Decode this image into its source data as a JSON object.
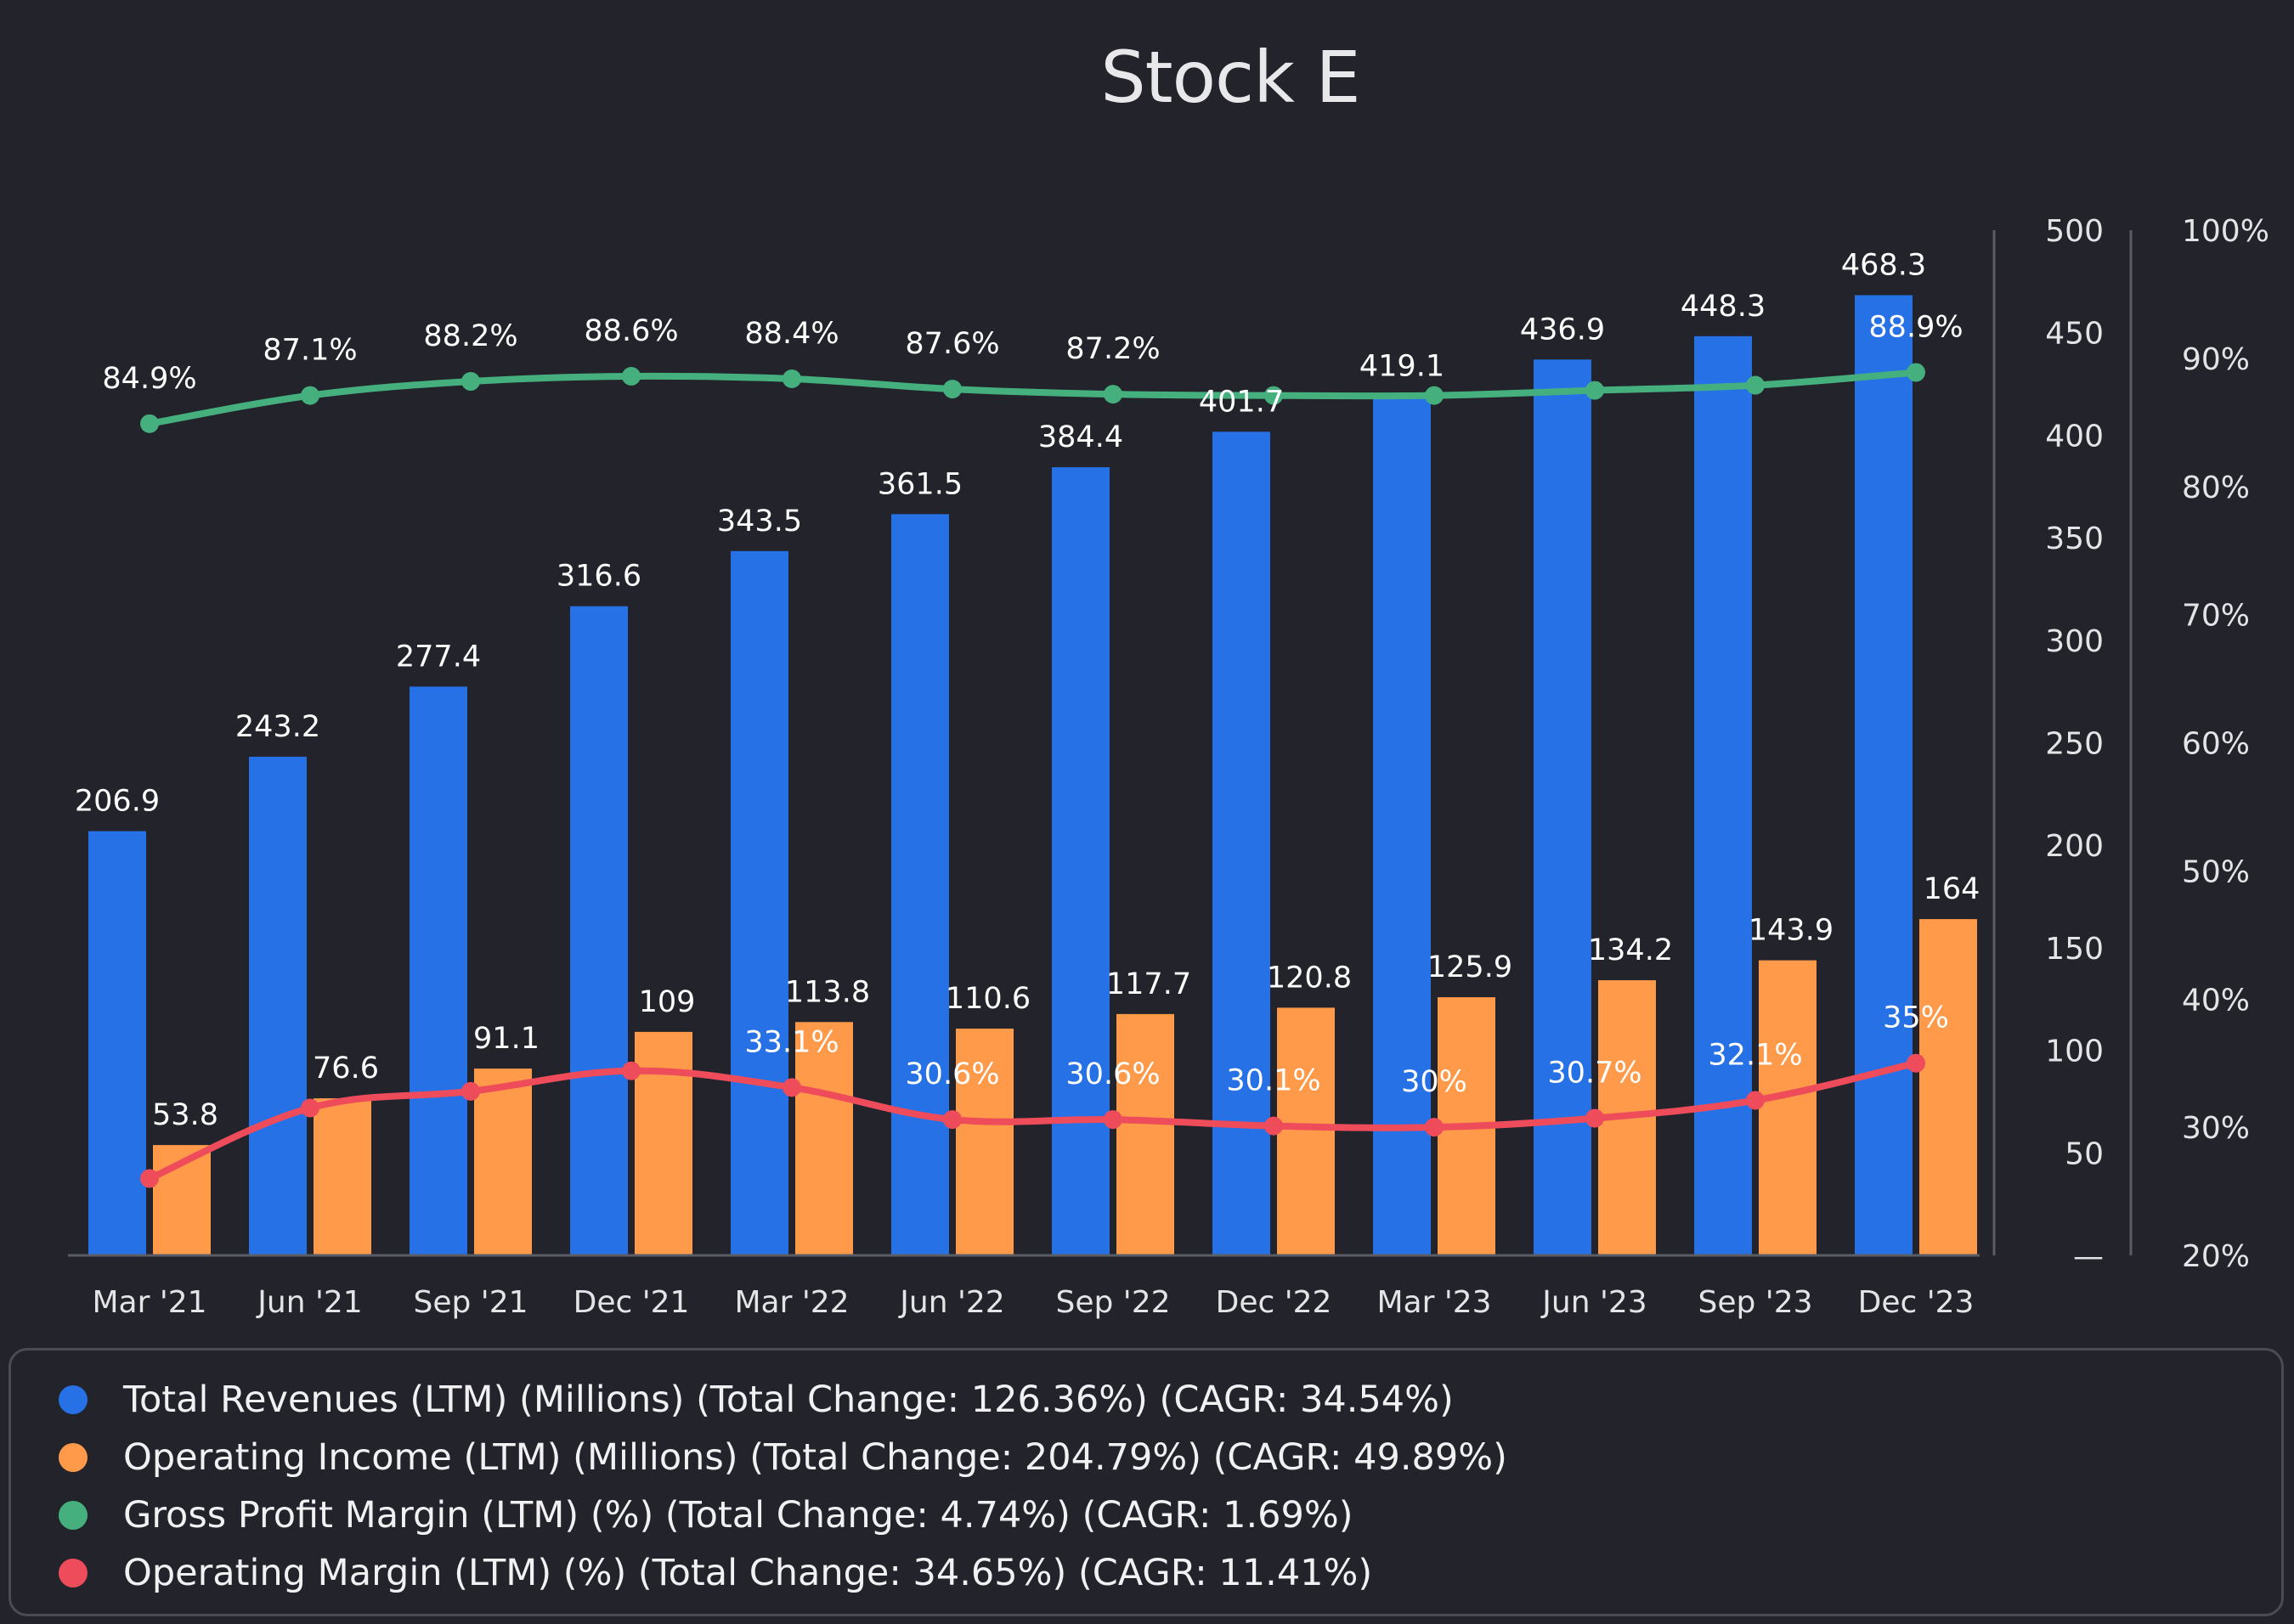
{
  "title": "Stock E",
  "colors": {
    "revenue": "#2671e6",
    "operating_income": "#fe9a4a",
    "gross_margin": "#45b07d",
    "operating_margin": "#ee4c5b",
    "axis_line": "#5b5d66",
    "background": "#22232b"
  },
  "legend": [
    {
      "label": "Total Revenues (LTM) (Millions) (Total Change: 126.36%) (CAGR: 34.54%)",
      "color": "#2671e6"
    },
    {
      "label": "Operating Income (LTM) (Millions) (Total Change: 204.79%) (CAGR: 49.89%)",
      "color": "#fe9a4a"
    },
    {
      "label": "Gross Profit Margin (LTM) (%) (Total Change: 4.74%) (CAGR: 1.69%)",
      "color": "#45b07d"
    },
    {
      "label": "Operating Margin (LTM) (%) (Total Change: 34.65%) (CAGR: 11.41%)",
      "color": "#ee4c5b"
    }
  ],
  "chart_data": {
    "type": "bar",
    "title": "Stock E",
    "categories": [
      "Mar '21",
      "Jun '21",
      "Sep '21",
      "Dec '21",
      "Mar '22",
      "Jun '22",
      "Sep '22",
      "Dec '22",
      "Mar '23",
      "Jun '23",
      "Sep '23",
      "Dec '23"
    ],
    "series": [
      {
        "name": "Total Revenues (LTM) (Millions) (Total Change: 126.36%) (CAGR: 34.54%)",
        "kind": "bar",
        "axis": "left",
        "values": [
          206.9,
          243.2,
          277.4,
          316.6,
          343.5,
          361.5,
          384.4,
          401.7,
          419.1,
          436.9,
          448.3,
          468.3
        ],
        "labels": [
          "206.9",
          "243.2",
          "277.4",
          "316.6",
          "343.5",
          "361.5",
          "384.4",
          "401.7",
          "419.1",
          "436.9",
          "448.3",
          "468.3"
        ]
      },
      {
        "name": "Operating Income (LTM) (Millions) (Total Change: 204.79%) (CAGR: 49.89%)",
        "kind": "bar",
        "axis": "left",
        "values": [
          53.8,
          76.6,
          91.1,
          109,
          113.8,
          110.6,
          117.7,
          120.8,
          125.9,
          134.2,
          143.9,
          164
        ],
        "labels": [
          "53.8",
          "76.6",
          "91.1",
          "109",
          "113.8",
          "110.6",
          "117.7",
          "120.8",
          "125.9",
          "134.2",
          "143.9",
          "164"
        ]
      },
      {
        "name": "Gross Profit Margin (LTM) (%) (Total Change: 4.74%) (CAGR: 1.69%)",
        "kind": "line",
        "axis": "right",
        "values": [
          84.9,
          87.1,
          88.2,
          88.6,
          88.4,
          87.6,
          87.2,
          87.1,
          87.1,
          87.5,
          87.9,
          88.9
        ],
        "labels": [
          "84.9%",
          "87.1%",
          "88.2%",
          "88.6%",
          "88.4%",
          "87.6%",
          "87.2%",
          "",
          "",
          "",
          "",
          "88.9%"
        ]
      },
      {
        "name": "Operating Margin (LTM) (%) (Total Change: 34.65%) (CAGR: 11.41%)",
        "kind": "line",
        "axis": "right",
        "values": [
          26,
          31.5,
          32.8,
          34.4,
          33.1,
          30.6,
          30.6,
          30.1,
          30,
          30.7,
          32.1,
          35
        ],
        "labels": [
          "",
          "",
          "",
          "",
          "33.1%",
          "30.6%",
          "30.6%",
          "30.1%",
          "30%",
          "30.7%",
          "32.1%",
          "35%"
        ]
      }
    ],
    "y_left": {
      "min": 0,
      "max": 500,
      "ticks": [
        "—",
        "50",
        "100",
        "150",
        "200",
        "250",
        "300",
        "350",
        "400",
        "450",
        "500"
      ]
    },
    "y_right": {
      "min": 20,
      "max": 100,
      "ticks": [
        "20%",
        "30%",
        "40%",
        "50%",
        "60%",
        "70%",
        "80%",
        "90%",
        "100%"
      ]
    },
    "legend_position": "bottom",
    "grid": false
  }
}
